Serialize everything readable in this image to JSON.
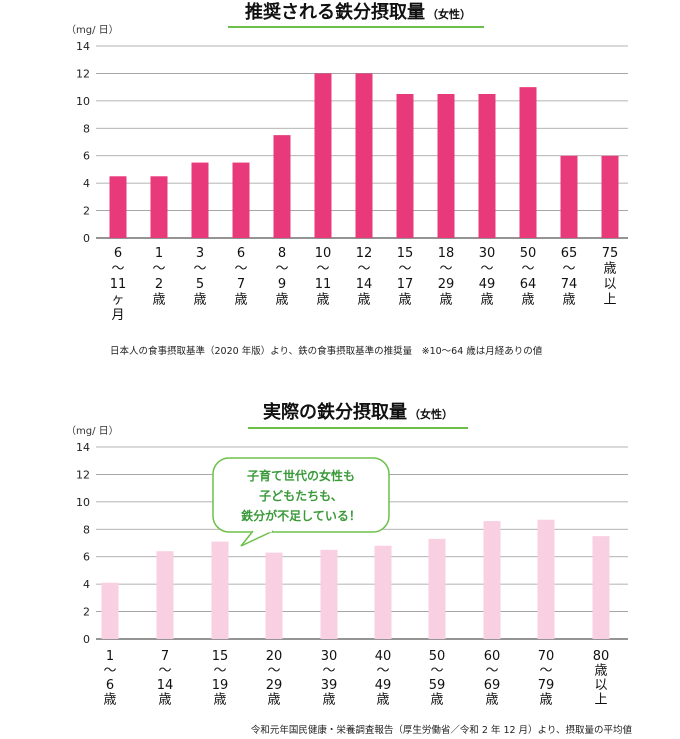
{
  "chart_data": [
    {
      "type": "bar",
      "title": "推奨される鉄分摂取量",
      "subtitle": "（女性）",
      "unit": "（mg/ 日）",
      "ylim": [
        0,
        14
      ],
      "yticks": [
        "0",
        "2",
        "4",
        "6",
        "8",
        "10",
        "12",
        "14"
      ],
      "grid": true,
      "color": "#e8397a",
      "categories": [
        [
          "6",
          "〜",
          "11",
          "ヶ",
          "月"
        ],
        [
          "1",
          "〜",
          "2",
          "歳"
        ],
        [
          "3",
          "〜",
          "5",
          "歳"
        ],
        [
          "6",
          "〜",
          "7",
          "歳"
        ],
        [
          "8",
          "〜",
          "9",
          "歳"
        ],
        [
          "10",
          "〜",
          "11",
          "歳"
        ],
        [
          "12",
          "〜",
          "14",
          "歳"
        ],
        [
          "15",
          "〜",
          "17",
          "歳"
        ],
        [
          "18",
          "〜",
          "29",
          "歳"
        ],
        [
          "30",
          "〜",
          "49",
          "歳"
        ],
        [
          "50",
          "〜",
          "64",
          "歳"
        ],
        [
          "65",
          "〜",
          "74",
          "歳"
        ],
        [
          "75",
          "歳",
          "以",
          "上"
        ]
      ],
      "values": [
        4.5,
        4.5,
        5.5,
        5.5,
        7.5,
        12,
        12,
        10.5,
        10.5,
        10.5,
        11,
        6,
        6
      ],
      "note": "日本人の食事摂取基準（2020 年版）より、鉄の食事摂取基準の推奨量　※10〜64 歳は月経ありの値"
    },
    {
      "type": "bar",
      "title": "実際の鉄分摂取量",
      "subtitle": "（女性）",
      "unit": "（mg/ 日）",
      "ylim": [
        0,
        14
      ],
      "yticks": [
        "0",
        "2",
        "4",
        "6",
        "8",
        "10",
        "12",
        "14"
      ],
      "grid": true,
      "color": "#f9cfe2",
      "categories": [
        [
          "1",
          "〜",
          "6",
          "歳"
        ],
        [
          "7",
          "〜",
          "14",
          "歳"
        ],
        [
          "15",
          "〜",
          "19",
          "歳"
        ],
        [
          "20",
          "〜",
          "29",
          "歳"
        ],
        [
          "30",
          "〜",
          "39",
          "歳"
        ],
        [
          "40",
          "〜",
          "49",
          "歳"
        ],
        [
          "50",
          "〜",
          "59",
          "歳"
        ],
        [
          "60",
          "〜",
          "69",
          "歳"
        ],
        [
          "70",
          "〜",
          "79",
          "歳"
        ],
        [
          "80",
          "歳",
          "以",
          "上"
        ]
      ],
      "values": [
        4.1,
        6.4,
        7.1,
        6.3,
        6.5,
        6.8,
        7.3,
        8.6,
        8.7,
        7.5
      ],
      "callout": [
        "子育て世代の女性も",
        "子どもたちも、",
        "鉄分が不足している！"
      ],
      "note": "令和元年国民健康・栄養調査報告（厚生労働省／令和 2 年 12 月）より、摂取量の平均値"
    }
  ],
  "colors": {
    "underline": "#6cc04a",
    "callout_border": "#6cc04a",
    "callout_text": "#3a9a3a"
  }
}
